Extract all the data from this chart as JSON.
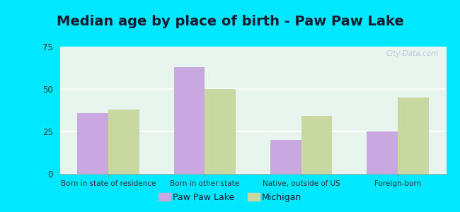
{
  "title": "Median age by place of birth - Paw Paw Lake",
  "categories": [
    "Born in state of residence",
    "Born in other state",
    "Native, outside of US",
    "Foreign-born"
  ],
  "paw_paw_lake": [
    36,
    63,
    20,
    25
  ],
  "michigan": [
    38,
    50,
    34,
    45
  ],
  "paw_paw_lake_color": "#c9a8e0",
  "michigan_color": "#c8d8a0",
  "ylim": [
    0,
    75
  ],
  "yticks": [
    0,
    25,
    50,
    75
  ],
  "legend_labels": [
    "Paw Paw Lake",
    "Michigan"
  ],
  "plot_bg_color": "#e8f5ee",
  "outer_background": "#00e8ff",
  "bar_width": 0.32,
  "title_fontsize": 14,
  "title_color": "#1a1a2e",
  "tick_color": "#333333",
  "watermark": "City-Data.com"
}
